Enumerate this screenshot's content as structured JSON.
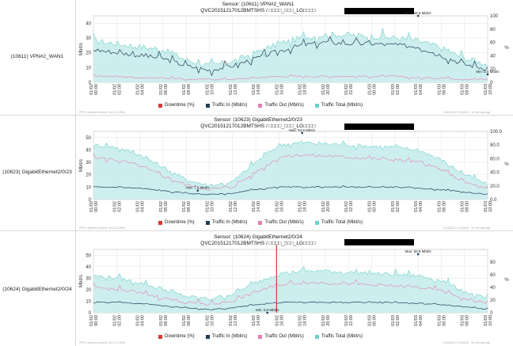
{
  "colors": {
    "downtime": "#d63a3a",
    "traffic_in": "#1f3e5a",
    "traffic_out": "#e27fb6",
    "traffic_total": "#6dd1cb",
    "fill": "#c8ecec"
  },
  "legend": {
    "downtime": "Downtime (%)",
    "traffic_in": "Traffic In (Mbit/s)",
    "traffic_out": "Traffic Out (Mbit/s)",
    "traffic_total": "Traffic Total (Mbit/s)"
  },
  "x_ticks": [
    "01/02\n00:00",
    "01/02\n02:00",
    "01/02\n04:00",
    "01/02\n06:00",
    "01/02\n08:00",
    "01/02\n10:00",
    "01/02\n12:00",
    "01/02\n14:00",
    "01/02\n16:00",
    "01/02\n18:00",
    "01/02\n20:00",
    "01/02\n22:00",
    "01/03\n00:00",
    "01/03\n02:00",
    "01/03\n04:00",
    "01/03\n06:00",
    "01/03\n08:00",
    "01/03\n10:00"
  ],
  "panels": [
    {
      "row_label": "(10611) VPN#2_WAN1",
      "sensor_title": "Sensor: (10611) VPN#2_WAN1",
      "sensor_sub": "QVC20151217012BMTSHS / □□□□_□□□_LG□□□□",
      "footer_left": "PRTG Network Monitor 16.2.24.3596",
      "footer_right": "01/03/2017 10:53:03 - 30 min average"
    },
    {
      "row_label": "(10623) GigabitEthernet2/0/23",
      "sensor_title": "Sensor: (10623) GigabitEthernet2/0/23",
      "sensor_sub": "QVC20151217012BMTSHS / □□□□_□□□_LG□□□□",
      "footer_left": "PRTG Network Monitor 16.2.24.3596",
      "footer_right": "01/03/2017 10:53:03 - 30 min average"
    },
    {
      "row_label": "(10624) GigabitEthernet2/0/24",
      "sensor_title": "Sensor: (10624) GigabitEthernet2/0/24",
      "sensor_sub": "QVC20151217012BMTSHS / □□□□_□□□_LG□□□□",
      "footer_left": "PRTG Network Monitor 16.2.24.3596",
      "footer_right": "01/03/2017 10:53:03 - 30 min average"
    }
  ],
  "chart_data": [
    {
      "type": "area",
      "title": "Sensor: (10611) VPN#2_WAN1",
      "ylabel": "Mbit/s",
      "y2label": "%",
      "ylim": [
        0,
        45
      ],
      "yticks": [
        0,
        10,
        20,
        30,
        40
      ],
      "y2lim": [
        0,
        100
      ],
      "y2ticks": [
        0,
        20,
        40,
        60,
        80,
        100
      ],
      "x": [
        "01/02 00:00",
        "01/02 02:00",
        "01/02 04:00",
        "01/02 06:00",
        "01/02 08:00",
        "01/02 10:00",
        "01/02 12:00",
        "01/02 14:00",
        "01/02 16:00",
        "01/02 18:00",
        "01/02 20:00",
        "01/02 22:00",
        "01/03 00:00",
        "01/03 02:00",
        "01/03 04:00",
        "01/03 06:00",
        "01/03 08:00",
        "01/03 10:00"
      ],
      "series": [
        {
          "name": "Traffic Total (Mbit/s)",
          "values": [
            28,
            26,
            24,
            22,
            15,
            11,
            14,
            20,
            26,
            30,
            32,
            32,
            31,
            30,
            28,
            23,
            16,
            12
          ]
        },
        {
          "name": "Traffic In (Mbit/s)",
          "values": [
            22,
            20,
            18,
            16,
            11,
            8,
            11,
            16,
            21,
            25,
            27,
            26,
            26,
            25,
            24,
            18,
            12,
            9
          ]
        },
        {
          "name": "Traffic Out (Mbit/s)",
          "values": [
            4,
            4,
            3,
            3,
            2,
            2,
            2,
            3,
            4,
            4,
            4,
            4,
            4,
            4,
            3,
            3,
            2,
            2
          ]
        },
        {
          "name": "Downtime (%)",
          "values": [
            0,
            0,
            0,
            0,
            0,
            0,
            0,
            0,
            0,
            0,
            0,
            0,
            0,
            0,
            0,
            0,
            0,
            0
          ]
        }
      ],
      "annotations": [
        {
          "text": "Max: 46.8 Mbit/s",
          "x": "01/03 04:00",
          "y": 46.8
        },
        {
          "text": "Min: 5.4 Mbit/s",
          "x": "01/03 10:00",
          "y": 5.4
        }
      ]
    },
    {
      "type": "area",
      "title": "Sensor: (10623) GigabitEthernet2/0/23",
      "ylabel": "Mbit/s",
      "y2label": "%",
      "ylim": [
        0,
        55
      ],
      "yticks": [
        0,
        10,
        20,
        30,
        40,
        50
      ],
      "y2lim": [
        0,
        100
      ],
      "y2ticks": [
        0.0,
        20.0,
        40.0,
        60.0,
        80.0,
        100.0
      ],
      "x": [
        "01/02 00:00",
        "01/02 02:00",
        "01/02 04:00",
        "01/02 06:00",
        "01/02 08:00",
        "01/02 10:00",
        "01/02 12:00",
        "01/02 14:00",
        "01/02 16:00",
        "01/02 18:00",
        "01/02 20:00",
        "01/02 22:00",
        "01/03 00:00",
        "01/03 02:00",
        "01/03 04:00",
        "01/03 06:00",
        "01/03 08:00",
        "01/03 10:00"
      ],
      "series": [
        {
          "name": "Traffic Total (Mbit/s)",
          "values": [
            44,
            42,
            36,
            26,
            16,
            11,
            14,
            30,
            44,
            46,
            45,
            44,
            43,
            42,
            40,
            32,
            20,
            12
          ]
        },
        {
          "name": "Traffic Out (Mbit/s)",
          "values": [
            34,
            32,
            27,
            19,
            12,
            8,
            10,
            22,
            34,
            36,
            35,
            34,
            33,
            32,
            30,
            24,
            14,
            8
          ]
        },
        {
          "name": "Traffic In (Mbit/s)",
          "values": [
            10,
            10,
            9,
            7,
            5,
            4,
            5,
            8,
            10,
            10,
            10,
            10,
            10,
            10,
            9,
            8,
            6,
            4
          ]
        },
        {
          "name": "Downtime (%)",
          "values": [
            0,
            0,
            0,
            0,
            0,
            0,
            0,
            0,
            0,
            0,
            0,
            0,
            0,
            0,
            0,
            0,
            0,
            0
          ]
        }
      ],
      "annotations": [
        {
          "text": "Max: 53.8 Mbit/s",
          "x": "01/02 18:00",
          "y": 53.8
        },
        {
          "text": "Min: 7.2 Mbit/s",
          "x": "01/02 09:00",
          "y": 7.2
        }
      ]
    },
    {
      "type": "area",
      "title": "Sensor: (10624) GigabitEthernet2/0/24",
      "ylabel": "Mbit/s",
      "y2label": "%",
      "ylim": [
        0,
        55
      ],
      "yticks": [
        0,
        10,
        20,
        30,
        40,
        50
      ],
      "y2lim": [
        0,
        100
      ],
      "y2ticks": [
        0,
        20,
        40,
        60,
        80
      ],
      "x": [
        "01/02 00:00",
        "01/02 02:00",
        "01/02 04:00",
        "01/02 06:00",
        "01/02 08:00",
        "01/02 10:00",
        "01/02 12:00",
        "01/02 14:00",
        "01/02 16:00",
        "01/02 18:00",
        "01/02 20:00",
        "01/02 22:00",
        "01/03 00:00",
        "01/03 02:00",
        "01/03 04:00",
        "01/03 06:00",
        "01/03 08:00",
        "01/03 10:00"
      ],
      "series": [
        {
          "name": "Traffic Total (Mbit/s)",
          "values": [
            32,
            30,
            26,
            20,
            14,
            12,
            16,
            26,
            34,
            36,
            36,
            35,
            34,
            33,
            32,
            28,
            18,
            12
          ]
        },
        {
          "name": "Traffic Out (Mbit/s)",
          "values": [
            22,
            20,
            17,
            13,
            9,
            7,
            10,
            18,
            24,
            26,
            26,
            25,
            24,
            23,
            22,
            19,
            12,
            8
          ]
        },
        {
          "name": "Traffic In (Mbit/s)",
          "values": [
            9,
            9,
            8,
            6,
            4,
            3,
            4,
            7,
            9,
            9,
            9,
            9,
            9,
            9,
            8,
            7,
            5,
            3
          ]
        },
        {
          "name": "Downtime (%)",
          "values": [
            0,
            0,
            0,
            0,
            0,
            0,
            0,
            0,
            100,
            0,
            0,
            0,
            0,
            0,
            0,
            0,
            0,
            0
          ]
        }
      ],
      "annotations": [
        {
          "text": "Max: 50.8 Mbit/s",
          "x": "01/03 04:00",
          "y": 50.8
        },
        {
          "text": "Min: 0.0 Mbit/s",
          "x": "01/02 15:00",
          "y": 0.0
        }
      ]
    }
  ]
}
